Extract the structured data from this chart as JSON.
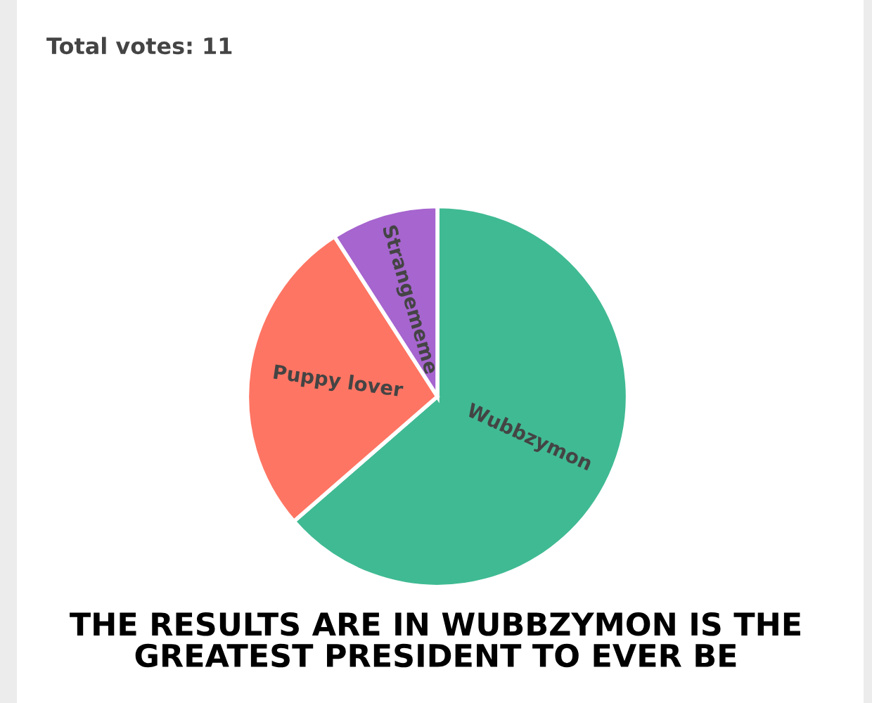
{
  "chart_data": {
    "type": "pie",
    "title": "Total votes: 11",
    "categories": [
      "Wubbzymon",
      "Puppy lover",
      "Strangememe"
    ],
    "values": [
      63.6,
      27.3,
      9.1
    ],
    "colors": [
      "#40ba93",
      "#ff7563",
      "#a665cf"
    ],
    "annotations": [
      "THE RESULTS ARE IN WUBBZYMON IS THE GREATEST PRESIDENT TO EVER BE"
    ]
  }
}
